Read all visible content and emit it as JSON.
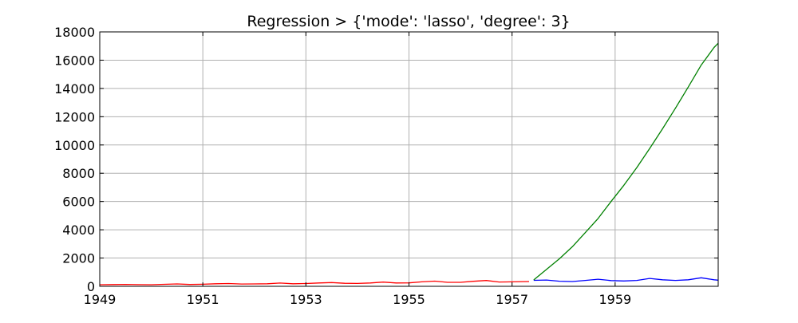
{
  "chart_data": {
    "type": "line",
    "title": "Regression > {'mode': 'lasso', 'degree': 3}",
    "xlabel": "",
    "ylabel": "",
    "xlim": [
      1949.0,
      1961.0
    ],
    "ylim": [
      0,
      18000
    ],
    "grid": true,
    "x_ticks": [
      "1949",
      "1951",
      "1953",
      "1955",
      "1957",
      "1959"
    ],
    "x_tick_values": [
      1949,
      1951,
      1953,
      1955,
      1957,
      1959
    ],
    "y_ticks": [
      "0",
      "2000",
      "4000",
      "6000",
      "8000",
      "10000",
      "12000",
      "14000",
      "16000",
      "18000"
    ],
    "y_tick_values": [
      0,
      2000,
      4000,
      6000,
      8000,
      10000,
      12000,
      14000,
      16000,
      18000
    ],
    "series": [
      {
        "color": "#ff0000",
        "x": [
          1949.0,
          1949.25,
          1949.5,
          1949.75,
          1950.0,
          1950.25,
          1950.5,
          1950.75,
          1951.0,
          1951.25,
          1951.5,
          1951.75,
          1952.0,
          1952.25,
          1952.5,
          1952.75,
          1953.0,
          1953.25,
          1953.5,
          1953.75,
          1954.0,
          1954.25,
          1954.5,
          1954.75,
          1955.0,
          1955.25,
          1955.5,
          1955.75,
          1956.0,
          1956.25,
          1956.5,
          1956.75,
          1957.0,
          1957.33
        ],
        "y": [
          112,
          125,
          135,
          118,
          115,
          141,
          170,
          130,
          145,
          178,
          199,
          165,
          171,
          180,
          230,
          183,
          196,
          235,
          264,
          212,
          204,
          235,
          300,
          237,
          242,
          315,
          364,
          280,
          284,
          355,
          413,
          306,
          315,
          340
        ]
      },
      {
        "color": "#0000ff",
        "x": [
          1957.42,
          1957.67,
          1957.92,
          1958.17,
          1958.42,
          1958.67,
          1958.92,
          1959.17,
          1959.42,
          1959.67,
          1959.92,
          1960.17,
          1960.42,
          1960.67,
          1960.92,
          1961.0
        ],
        "y": [
          422,
          448,
          360,
          340,
          420,
          505,
          404,
          380,
          420,
          559,
          463,
          419,
          461,
          606,
          461,
          432
        ]
      },
      {
        "color": "#008000",
        "x": [
          1957.42,
          1957.67,
          1957.92,
          1958.17,
          1958.42,
          1958.67,
          1958.92,
          1959.17,
          1959.42,
          1959.67,
          1959.92,
          1960.17,
          1960.42,
          1960.67,
          1960.92,
          1961.0
        ],
        "y": [
          450,
          1200,
          1950,
          2800,
          3800,
          4800,
          6000,
          7150,
          8400,
          9750,
          11150,
          12600,
          14100,
          15650,
          16900,
          17200
        ]
      }
    ]
  }
}
